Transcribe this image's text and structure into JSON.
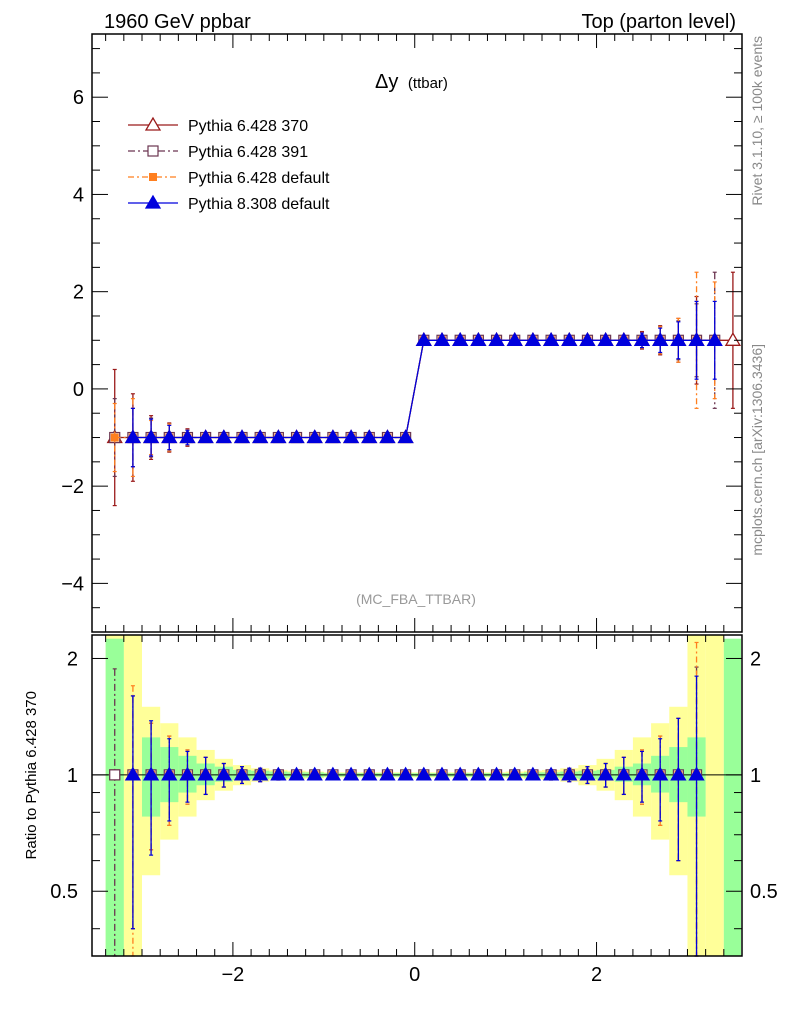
{
  "header": {
    "left": "1960 GeV ppbar",
    "right": "Top (parton level)"
  },
  "side_labels": {
    "rivet": "Rivet 3.1.10, ≥ 100k events",
    "mcplots": "mcplots.cern.ch [arXiv:1306.3436]"
  },
  "colors": {
    "p370": "#9a1a1a",
    "p391": "#6b3550",
    "p6def": "#ff7f1f",
    "p8def": "#0000dd",
    "band_inner": "#99ff99",
    "band_outer": "#ffff99"
  },
  "chart_data": [
    {
      "type": "line",
      "title": "Δy",
      "title_suffix": "(ttbar)",
      "analysis_label": "(MC_FBA_TTBAR)",
      "xlim": [
        -3.55,
        3.6
      ],
      "ylim": [
        -5,
        7.3
      ],
      "y_ticks": [
        -4,
        -2,
        0,
        2,
        4,
        6
      ],
      "legend_position": "top-left",
      "x": [
        -3.3,
        -3.1,
        -2.9,
        -2.7,
        -2.5,
        -2.3,
        -2.1,
        -1.9,
        -1.7,
        -1.5,
        -1.3,
        -1.1,
        -0.9,
        -0.7,
        -0.5,
        -0.3,
        -0.1,
        0.1,
        0.3,
        0.5,
        0.7,
        0.9,
        1.1,
        1.3,
        1.5,
        1.7,
        1.9,
        2.1,
        2.3,
        2.5,
        2.7,
        2.9,
        3.1,
        3.3,
        3.5
      ],
      "series": [
        {
          "name": "Pythia 6.428 370",
          "marker": "open-triangle",
          "dash": "",
          "values": [
            -1,
            -1,
            -1,
            -1,
            -1,
            -1,
            -1,
            -1,
            -1,
            -1,
            -1,
            -1,
            -1,
            -1,
            -1,
            -1,
            -1,
            1,
            1,
            1,
            1,
            1,
            1,
            1,
            1,
            1,
            1,
            1,
            1,
            1,
            1,
            1,
            1,
            null,
            1
          ],
          "errors": [
            1.4,
            0.9,
            0.45,
            0.3,
            0.18,
            0.1,
            0.07,
            0.05,
            0.04,
            0.03,
            0.02,
            0.02,
            0.02,
            0.02,
            0.02,
            0.02,
            0.02,
            0.02,
            0.02,
            0.02,
            0.02,
            0.02,
            0.02,
            0.02,
            0.03,
            0.04,
            0.05,
            0.07,
            0.1,
            0.18,
            0.3,
            0.45,
            0.9,
            null,
            1.4
          ]
        },
        {
          "name": "Pythia 6.428 391",
          "marker": "open-square",
          "dash": "7,3,2,3",
          "values": [
            -1,
            -1,
            -1,
            -1,
            -1,
            -1,
            -1,
            -1,
            -1,
            -1,
            -1,
            -1,
            -1,
            -1,
            -1,
            -1,
            -1,
            1,
            1,
            1,
            1,
            1,
            1,
            1,
            1,
            1,
            1,
            1,
            1,
            1,
            1,
            1,
            1,
            1,
            null
          ],
          "errors": [
            0.8,
            0.6,
            0.4,
            0.28,
            0.16,
            0.1,
            0.07,
            0.05,
            0.04,
            0.03,
            0.02,
            0.02,
            0.02,
            0.02,
            0.02,
            0.02,
            0.02,
            0.02,
            0.02,
            0.02,
            0.02,
            0.02,
            0.02,
            0.02,
            0.03,
            0.04,
            0.05,
            0.07,
            0.1,
            0.16,
            0.28,
            0.4,
            0.75,
            1.4,
            null
          ]
        },
        {
          "name": "Pythia 6.428 default",
          "marker": "filled-square",
          "dash": "6,3,2,3",
          "values": [
            -1,
            -1,
            -1,
            -1,
            -1,
            -1,
            -1,
            -1,
            -1,
            -1,
            -1,
            -1,
            -1,
            -1,
            -1,
            -1,
            -1,
            1,
            1,
            1,
            1,
            1,
            1,
            1,
            1,
            1,
            1,
            1,
            1,
            1,
            1,
            1,
            1,
            1,
            null
          ],
          "errors": [
            0.7,
            0.8,
            0.35,
            0.28,
            0.16,
            0.1,
            0.07,
            0.05,
            0.04,
            0.03,
            0.02,
            0.02,
            0.02,
            0.02,
            0.02,
            0.02,
            0.02,
            0.02,
            0.02,
            0.02,
            0.02,
            0.02,
            0.02,
            0.02,
            0.03,
            0.04,
            0.05,
            0.07,
            0.1,
            0.16,
            0.28,
            0.45,
            1.4,
            1.2,
            null
          ]
        },
        {
          "name": "Pythia 8.308 default",
          "marker": "filled-triangle",
          "dash": "",
          "values": [
            null,
            -1,
            -1,
            -1,
            -1,
            -1,
            -1,
            -1,
            -1,
            -1,
            -1,
            -1,
            -1,
            -1,
            -1,
            -1,
            -1,
            1,
            1,
            1,
            1,
            1,
            1,
            1,
            1,
            1,
            1,
            1,
            1,
            1,
            1,
            1,
            1,
            1,
            null
          ],
          "errors": [
            null,
            0.6,
            0.38,
            0.25,
            0.15,
            0.1,
            0.07,
            0.05,
            0.04,
            0.03,
            0.02,
            0.02,
            0.02,
            0.02,
            0.02,
            0.02,
            0.02,
            0.02,
            0.02,
            0.02,
            0.02,
            0.02,
            0.02,
            0.02,
            0.03,
            0.04,
            0.05,
            0.07,
            0.1,
            0.15,
            0.25,
            0.38,
            0.8,
            0.8,
            null
          ]
        }
      ]
    },
    {
      "type": "line",
      "ylabel": "Ratio to Pythia 6.428 370",
      "xlim": [
        -3.55,
        3.6
      ],
      "ylim": [
        0.34,
        2.3
      ],
      "x_ticks": [
        -2,
        0,
        2
      ],
      "y_ticks": [
        0.5,
        1,
        2
      ],
      "y_tick_labels": [
        "0.5",
        "1",
        "2"
      ],
      "reference_line": 1,
      "band_edges": [
        -3.4,
        -3.2,
        -3.0,
        -2.8,
        -2.6,
        -2.4,
        -2.2,
        -2.0,
        -1.8,
        -1.6,
        -1.4,
        -1.2,
        -1.0,
        -0.8,
        -0.6,
        -0.4,
        -0.2,
        0.0,
        0.2,
        0.4,
        0.6,
        0.8,
        1.0,
        1.2,
        1.4,
        1.6,
        1.8,
        2.0,
        2.2,
        2.4,
        2.6,
        2.8,
        3.0,
        3.2,
        3.4,
        3.6
      ],
      "band_inner": [
        [
          0.3,
          2.25
        ],
        [
          null,
          null
        ],
        [
          0.78,
          1.25
        ],
        [
          0.85,
          1.18
        ],
        [
          0.9,
          1.12
        ],
        [
          0.94,
          1.07
        ],
        [
          0.96,
          1.05
        ],
        [
          0.97,
          1.03
        ],
        [
          0.975,
          1.025
        ],
        [
          0.98,
          1.02
        ],
        [
          0.985,
          1.015
        ],
        [
          0.985,
          1.015
        ],
        [
          0.99,
          1.01
        ],
        [
          0.99,
          1.01
        ],
        [
          0.99,
          1.01
        ],
        [
          0.99,
          1.01
        ],
        [
          0.99,
          1.01
        ],
        [
          0.99,
          1.01
        ],
        [
          0.99,
          1.01
        ],
        [
          0.99,
          1.01
        ],
        [
          0.99,
          1.01
        ],
        [
          0.99,
          1.01
        ],
        [
          0.99,
          1.01
        ],
        [
          0.985,
          1.015
        ],
        [
          0.985,
          1.015
        ],
        [
          0.98,
          1.02
        ],
        [
          0.975,
          1.025
        ],
        [
          0.97,
          1.03
        ],
        [
          0.96,
          1.05
        ],
        [
          0.94,
          1.07
        ],
        [
          0.9,
          1.12
        ],
        [
          0.85,
          1.18
        ],
        [
          0.78,
          1.25
        ],
        [
          null,
          null
        ],
        [
          0.3,
          2.25
        ]
      ],
      "band_outer": [
        [
          0.3,
          2.3
        ],
        [
          0.3,
          2.3
        ],
        [
          0.55,
          1.5
        ],
        [
          0.68,
          1.36
        ],
        [
          0.78,
          1.25
        ],
        [
          0.86,
          1.16
        ],
        [
          0.91,
          1.1
        ],
        [
          0.94,
          1.06
        ],
        [
          0.96,
          1.04
        ],
        [
          0.97,
          1.03
        ],
        [
          0.975,
          1.025
        ],
        [
          0.98,
          1.02
        ],
        [
          0.985,
          1.015
        ],
        [
          0.985,
          1.015
        ],
        [
          0.985,
          1.015
        ],
        [
          0.985,
          1.015
        ],
        [
          0.985,
          1.015
        ],
        [
          0.985,
          1.015
        ],
        [
          0.985,
          1.015
        ],
        [
          0.985,
          1.015
        ],
        [
          0.985,
          1.015
        ],
        [
          0.985,
          1.015
        ],
        [
          0.98,
          1.02
        ],
        [
          0.975,
          1.025
        ],
        [
          0.97,
          1.03
        ],
        [
          0.96,
          1.04
        ],
        [
          0.94,
          1.06
        ],
        [
          0.91,
          1.1
        ],
        [
          0.86,
          1.16
        ],
        [
          0.78,
          1.25
        ],
        [
          0.68,
          1.36
        ],
        [
          0.55,
          1.5
        ],
        [
          0.3,
          2.3
        ],
        [
          0.3,
          2.3
        ],
        [
          null,
          null
        ]
      ],
      "x": [
        -3.3,
        -3.1,
        -2.9,
        -2.7,
        -2.5,
        -2.3,
        -2.1,
        -1.9,
        -1.7,
        -1.5,
        -1.3,
        -1.1,
        -0.9,
        -0.7,
        -0.5,
        -0.3,
        -0.1,
        0.1,
        0.3,
        0.5,
        0.7,
        0.9,
        1.1,
        1.3,
        1.5,
        1.7,
        1.9,
        2.1,
        2.3,
        2.5,
        2.7,
        2.9,
        3.1
      ],
      "series": [
        {
          "name": "Pythia 6.428 391",
          "values": [
            1,
            1,
            1,
            1,
            1,
            1,
            1,
            1,
            1,
            1,
            1,
            1,
            1,
            1,
            1,
            1,
            1,
            1,
            1,
            1,
            1,
            1,
            1,
            1,
            1,
            1,
            1,
            1,
            1,
            1,
            1,
            1,
            1
          ],
          "errors": [
            0.88,
            0.6,
            0.36,
            0.26,
            0.16,
            0.11,
            0.07,
            0.05,
            0.04,
            0.03,
            0.02,
            0.015,
            0.015,
            0.015,
            0.015,
            0.015,
            0.015,
            0.015,
            0.015,
            0.015,
            0.015,
            0.015,
            0.015,
            0.02,
            0.03,
            0.04,
            0.05,
            0.07,
            0.11,
            0.16,
            0.26,
            0.4,
            0.9
          ]
        },
        {
          "name": "Pythia 6.428 default",
          "values": [
            null,
            1,
            1,
            1,
            1,
            1,
            1,
            1,
            1,
            1,
            1,
            1,
            1,
            1,
            1,
            1,
            1,
            1,
            1,
            1,
            1,
            1,
            1,
            1,
            1,
            1,
            1,
            1,
            1,
            1,
            1,
            1,
            1
          ],
          "errors": [
            null,
            0.7,
            0.36,
            0.26,
            0.16,
            0.11,
            0.07,
            0.05,
            0.04,
            0.03,
            0.02,
            0.015,
            0.015,
            0.015,
            0.015,
            0.015,
            0.015,
            0.015,
            0.015,
            0.015,
            0.015,
            0.015,
            0.015,
            0.02,
            0.03,
            0.04,
            0.05,
            0.07,
            0.11,
            0.16,
            0.26,
            0.4,
            1.2
          ]
        },
        {
          "name": "Pythia 8.308 default",
          "values": [
            null,
            1,
            1,
            1,
            1,
            1,
            1,
            1,
            1,
            1,
            1,
            1,
            1,
            1,
            1,
            1,
            1,
            1,
            1,
            1,
            1,
            1,
            1,
            1,
            1,
            1,
            1,
            1,
            1,
            1,
            1,
            1,
            1
          ],
          "errors": [
            null,
            0.6,
            0.38,
            0.24,
            0.15,
            0.11,
            0.07,
            0.05,
            0.04,
            0.03,
            0.02,
            0.015,
            0.015,
            0.015,
            0.015,
            0.015,
            0.015,
            0.015,
            0.015,
            0.015,
            0.015,
            0.015,
            0.015,
            0.02,
            0.03,
            0.04,
            0.05,
            0.07,
            0.11,
            0.15,
            0.24,
            0.4,
            0.8
          ]
        }
      ]
    }
  ]
}
